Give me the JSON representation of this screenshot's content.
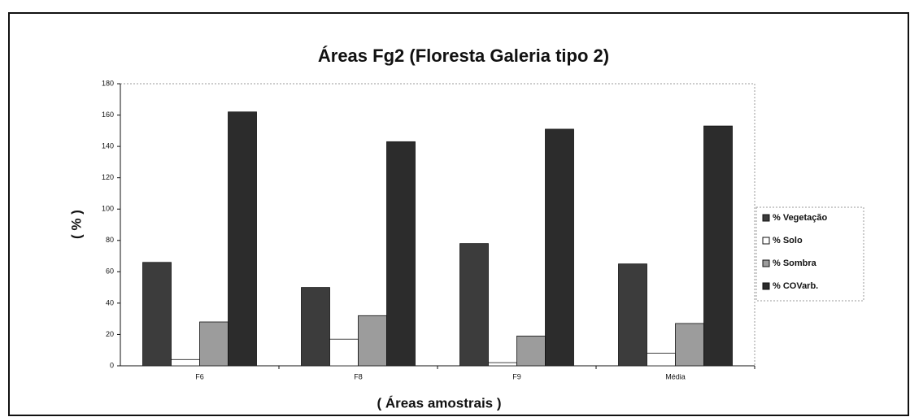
{
  "chart_data": {
    "type": "bar",
    "title": "Áreas Fg2 (Floresta Galeria tipo 2)",
    "x_label": "( Áreas amostrais )",
    "y_label": "( % )",
    "categories": [
      "F6",
      "F8",
      "F9",
      "Média"
    ],
    "series": [
      {
        "name": "% Vegetação",
        "color": "#3c3c3c",
        "values": [
          66,
          50,
          78,
          65
        ]
      },
      {
        "name": "% Solo",
        "color": "#ffffff",
        "values": [
          4,
          17,
          2,
          8
        ]
      },
      {
        "name": "% Sombra",
        "color": "#9c9c9c",
        "values": [
          28,
          32,
          19,
          27
        ]
      },
      {
        "name": "% COVarb.",
        "color": "#2c2c2c",
        "values": [
          162,
          143,
          151,
          153
        ]
      }
    ],
    "ylim": [
      0,
      180
    ],
    "yticks": [
      0,
      20,
      40,
      60,
      80,
      100,
      120,
      140,
      160,
      180
    ],
    "legend": "right"
  }
}
